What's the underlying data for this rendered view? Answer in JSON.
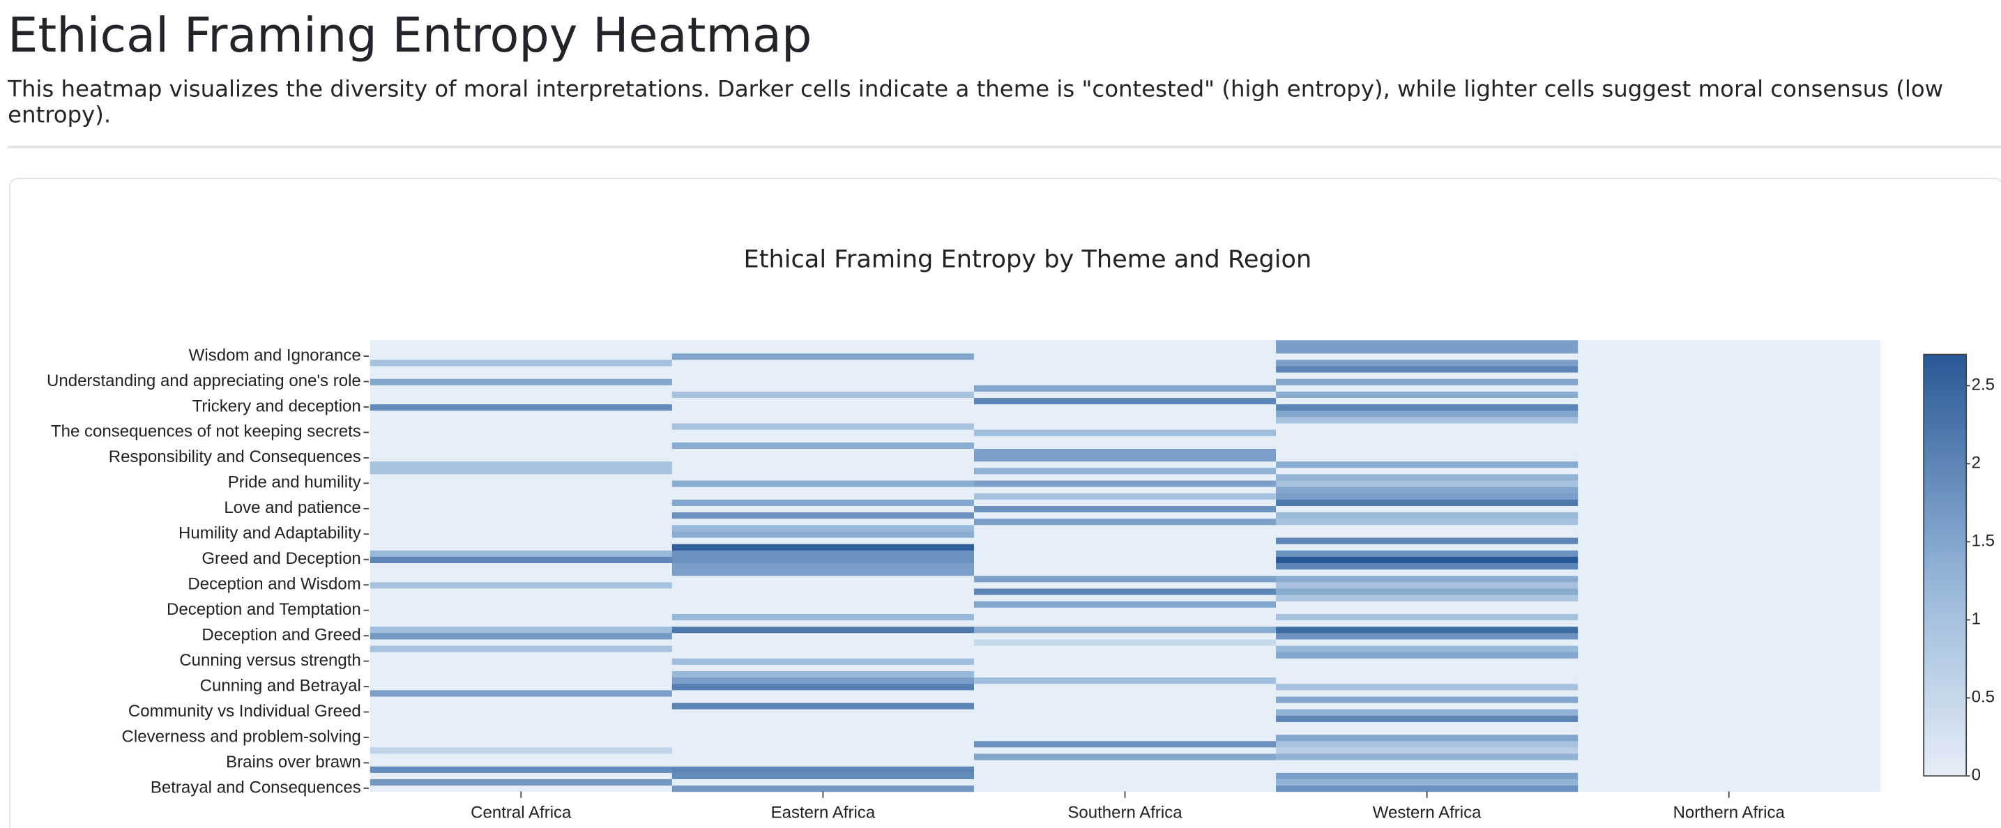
{
  "header": {
    "title": "Ethical Framing Entropy Heatmap",
    "description": "This heatmap visualizes the diversity of moral interpretations. Darker cells indicate a theme is \"contested\" (high entropy), while lighter cells suggest moral consensus (low entropy)."
  },
  "chart_data": {
    "type": "heatmap",
    "title": "Ethical Framing Entropy by Theme and Region",
    "x": [
      "Central Africa",
      "Eastern Africa",
      "Southern Africa",
      "Western Africa",
      "Northern Africa"
    ],
    "y": [
      "Betrayal and Consequences",
      null,
      null,
      null,
      "Brains over brawn",
      null,
      null,
      null,
      "Cleverness and problem-solving",
      null,
      null,
      null,
      "Community vs Individual Greed",
      null,
      null,
      null,
      "Cunning and Betrayal",
      null,
      null,
      null,
      "Cunning versus strength",
      null,
      null,
      null,
      "Deception and Greed",
      null,
      null,
      null,
      "Deception and Temptation",
      null,
      null,
      null,
      "Deception and Wisdom",
      null,
      null,
      null,
      "Greed and Deception",
      null,
      null,
      null,
      "Humility and Adaptability",
      null,
      null,
      null,
      "Love and patience",
      null,
      null,
      null,
      "Pride and humility",
      null,
      null,
      null,
      "Responsibility and Consequences",
      null,
      null,
      null,
      "The consequences of not keeping secrets",
      null,
      null,
      null,
      "Trickery and deception",
      null,
      null,
      null,
      "Understanding and appreciating one's role",
      null,
      null,
      null,
      "Wisdom and Ignorance",
      null,
      null
    ],
    "z": [
      [
        0,
        1.7,
        0,
        1.8,
        0
      ],
      [
        1.7,
        0,
        0,
        1.3,
        0
      ],
      [
        0,
        1.9,
        0,
        1.6,
        0
      ],
      [
        1.9,
        2.0,
        0,
        0,
        0
      ],
      [
        0,
        0,
        0,
        0,
        0
      ],
      [
        0,
        0,
        1.5,
        1.3,
        0
      ],
      [
        0.6,
        0,
        0,
        0.7,
        0
      ],
      [
        0,
        0,
        1.8,
        1.0,
        0
      ],
      [
        0,
        0,
        0,
        1.5,
        0
      ],
      [
        0,
        0,
        0,
        0,
        0
      ],
      [
        0,
        0,
        0,
        0,
        0
      ],
      [
        0,
        0,
        0,
        2.0,
        0
      ],
      [
        0,
        0,
        0,
        1.3,
        0
      ],
      [
        0,
        2.0,
        0,
        0,
        0
      ],
      [
        0,
        0,
        0,
        1.5,
        0
      ],
      [
        1.6,
        0,
        0,
        0,
        0
      ],
      [
        0,
        2.1,
        0,
        1.0,
        0
      ],
      [
        0,
        1.6,
        1.1,
        0,
        0
      ],
      [
        0,
        1.2,
        0,
        0,
        0
      ],
      [
        0,
        0,
        0,
        0,
        0
      ],
      [
        0,
        1.1,
        0,
        0,
        0
      ],
      [
        0,
        0,
        0,
        1.5,
        0
      ],
      [
        1.0,
        0,
        0,
        1.2,
        0
      ],
      [
        0,
        0,
        0.5,
        0,
        0
      ],
      [
        1.7,
        0,
        0,
        1.8,
        0
      ],
      [
        1.1,
        2.2,
        1.4,
        2.4,
        0
      ],
      [
        0,
        0,
        0,
        0,
        0
      ],
      [
        0,
        1.2,
        0,
        1.0,
        0
      ],
      [
        0,
        0,
        0,
        0,
        0
      ],
      [
        0,
        0,
        1.5,
        0,
        0
      ],
      [
        0,
        0,
        0,
        0.9,
        0
      ],
      [
        0,
        0,
        2.0,
        1.4,
        0
      ],
      [
        1.0,
        0,
        0,
        1.0,
        0
      ],
      [
        0,
        0,
        1.6,
        1.4,
        0
      ],
      [
        0,
        1.6,
        0,
        0,
        0
      ],
      [
        0,
        1.6,
        0,
        2.0,
        0
      ],
      [
        2.0,
        1.8,
        0,
        2.7,
        0
      ],
      [
        1.2,
        1.8,
        0,
        1.8,
        0
      ],
      [
        0,
        2.6,
        0,
        0,
        0
      ],
      [
        0,
        0,
        0,
        2.0,
        0
      ],
      [
        0,
        1.4,
        0,
        0,
        0
      ],
      [
        0,
        1.2,
        0,
        0,
        0
      ],
      [
        0,
        0,
        1.6,
        1.0,
        0
      ],
      [
        0,
        1.8,
        0,
        1.2,
        0
      ],
      [
        0,
        0,
        1.8,
        0,
        0
      ],
      [
        0,
        1.5,
        0,
        2.2,
        0
      ],
      [
        0,
        0,
        1.0,
        1.6,
        0
      ],
      [
        0,
        0,
        0,
        1.5,
        0
      ],
      [
        0,
        1.4,
        1.6,
        1.0,
        0
      ],
      [
        0,
        0,
        0,
        1.3,
        0
      ],
      [
        1.0,
        0,
        1.3,
        0,
        0
      ],
      [
        1.0,
        0,
        0,
        1.4,
        0
      ],
      [
        0,
        0,
        1.6,
        0,
        0
      ],
      [
        0,
        0,
        1.6,
        0,
        0
      ],
      [
        0,
        1.4,
        0,
        0,
        0
      ],
      [
        0,
        0,
        0,
        0,
        0
      ],
      [
        0,
        0,
        1.1,
        0,
        0
      ],
      [
        0,
        1.0,
        0,
        0,
        0
      ],
      [
        0,
        0,
        0,
        1.0,
        0
      ],
      [
        0,
        0,
        0,
        1.5,
        0
      ],
      [
        1.9,
        0,
        0,
        2.0,
        0
      ],
      [
        0,
        0,
        2.0,
        0,
        0
      ],
      [
        0,
        1.0,
        0,
        1.4,
        0
      ],
      [
        0,
        0,
        1.5,
        0,
        0
      ],
      [
        1.5,
        0,
        0,
        1.5,
        0
      ],
      [
        0,
        0,
        0,
        0,
        0
      ],
      [
        0,
        0,
        0,
        2.0,
        0
      ],
      [
        1.0,
        0,
        0,
        1.6,
        0
      ],
      [
        0,
        1.5,
        0,
        0,
        0
      ],
      [
        0,
        0,
        0,
        1.6,
        0
      ],
      [
        0,
        0,
        0,
        1.6,
        0
      ]
    ],
    "zlim": [
      0,
      2.7
    ],
    "colorbar_ticks": [
      0,
      0.5,
      1,
      1.5,
      2,
      2.5
    ],
    "colorscale": [
      [
        0,
        "#e6eef7"
      ],
      [
        0.45,
        "#98b8da"
      ],
      [
        1,
        "#285895"
      ]
    ]
  }
}
